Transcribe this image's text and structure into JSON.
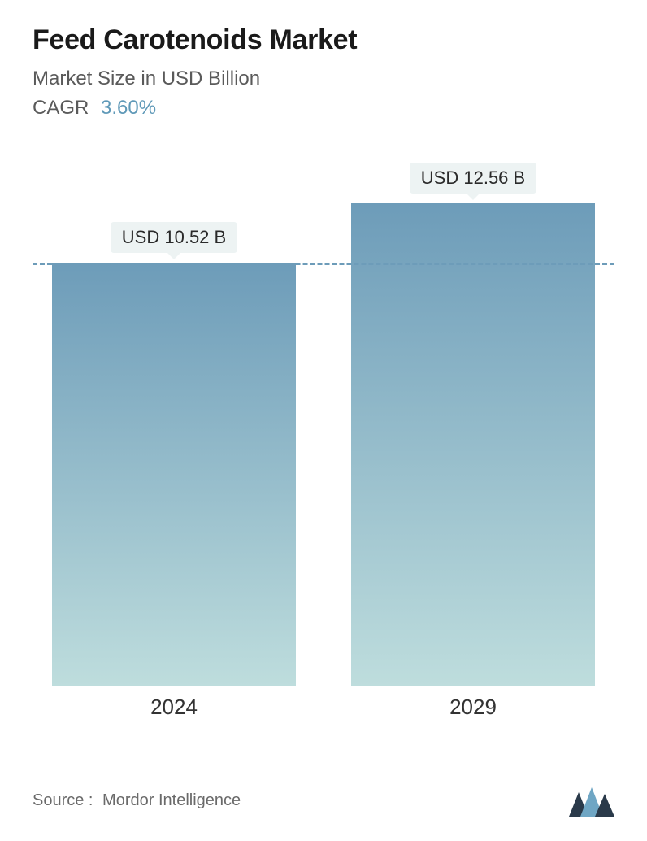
{
  "title": "Feed Carotenoids Market",
  "subtitle": "Market Size in USD Billion",
  "cagr_label": "CAGR",
  "cagr_value": "3.60%",
  "chart": {
    "type": "bar",
    "value_prefix": "USD ",
    "value_suffix": " B",
    "bar_gradient_top": "#6d9cb9",
    "bar_gradient_bottom": "#bedddd",
    "chip_bg": "#edf3f3",
    "chip_text": "#2a2a2a",
    "dashed_color": "#6d9cb9",
    "reference_line_value": 10.52,
    "y_max": 13.0,
    "bars": [
      {
        "category": "2024",
        "value": 10.52,
        "display": "USD 10.52 B"
      },
      {
        "category": "2029",
        "value": 12.56,
        "display": "USD 12.56 B"
      }
    ],
    "label_fontsize": 22,
    "xlabel_fontsize": 26,
    "title_fontsize": 34,
    "subtitle_fontsize": 24
  },
  "footer": {
    "source_label": "Source :",
    "source_name": "Mordor Intelligence"
  },
  "colors": {
    "title_color": "#1a1a1a",
    "subtitle_color": "#5a5a5a",
    "cagr_value_color": "#5f99b8",
    "background": "#ffffff",
    "logo_dark": "#2a3a4a",
    "logo_light": "#6fa6c4"
  }
}
